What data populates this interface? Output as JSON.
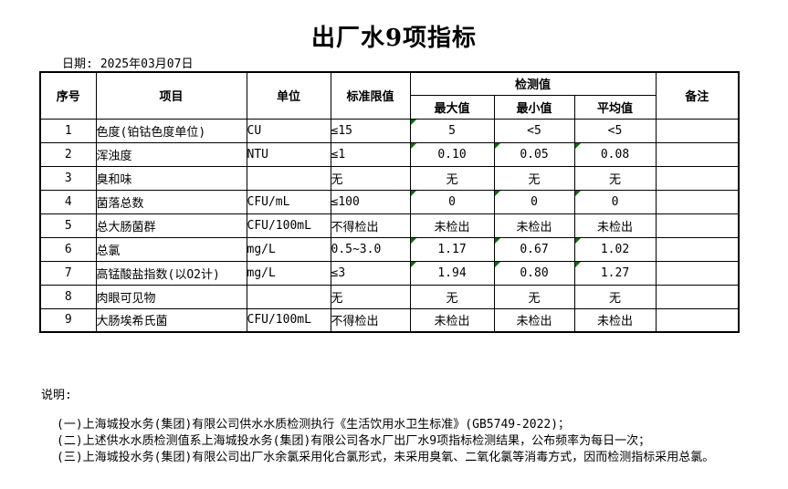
{
  "title": "出厂水9项指标",
  "date": {
    "label": "日期:",
    "value": "2025年03月07日"
  },
  "colors": {
    "flag_triangle": "#007000"
  },
  "table": {
    "headers": {
      "seq": "序号",
      "item": "项目",
      "unit": "单位",
      "limit": "标准限值",
      "detection": "检测值",
      "max": "最大值",
      "min": "最小值",
      "avg": "平均值",
      "remark": "备注"
    },
    "rows": [
      {
        "seq": "1",
        "item": "色度(铂钴色度单位)",
        "unit": "CU",
        "limit": "≤15",
        "max": "5",
        "min": "<5",
        "avg": "<5",
        "remark": "",
        "flags": [
          "max"
        ]
      },
      {
        "seq": "2",
        "item": "浑浊度",
        "unit": "NTU",
        "limit": "≤1",
        "max": "0.10",
        "min": "0.05",
        "avg": "0.08",
        "remark": "",
        "flags": [
          "max",
          "min",
          "avg"
        ]
      },
      {
        "seq": "3",
        "item": "臭和味",
        "unit": "",
        "limit": "无",
        "max": "无",
        "min": "无",
        "avg": "无",
        "remark": "",
        "flags": []
      },
      {
        "seq": "4",
        "item": "菌落总数",
        "unit": "CFU/mL",
        "limit": "≤100",
        "max": "0",
        "min": "0",
        "avg": "0",
        "remark": "",
        "flags": [
          "max",
          "min",
          "avg"
        ]
      },
      {
        "seq": "5",
        "item": "总大肠菌群",
        "unit": "CFU/100mL",
        "limit": "不得检出",
        "max": "未检出",
        "min": "未检出",
        "avg": "未检出",
        "remark": "",
        "flags": []
      },
      {
        "seq": "6",
        "item": "总氯",
        "unit": "mg/L",
        "limit": "0.5~3.0",
        "max": "1.17",
        "min": "0.67",
        "avg": "1.02",
        "remark": "",
        "flags": [
          "max",
          "min",
          "avg"
        ]
      },
      {
        "seq": "7",
        "item": "高锰酸盐指数(以O2计)",
        "unit": "mg/L",
        "limit": "≤3",
        "max": "1.94",
        "min": "0.80",
        "avg": "1.27",
        "remark": "",
        "flags": [
          "max",
          "min",
          "avg"
        ]
      },
      {
        "seq": "8",
        "item": "肉眼可见物",
        "unit": "",
        "limit": "无",
        "max": "无",
        "min": "无",
        "avg": "无",
        "remark": "",
        "flags": []
      },
      {
        "seq": "9",
        "item": "大肠埃希氏菌",
        "unit": "CFU/100mL",
        "limit": "不得检出",
        "max": "未检出",
        "min": "未检出",
        "avg": "未检出",
        "remark": "",
        "flags": []
      }
    ]
  },
  "notes": {
    "heading": "说明:",
    "lines": [
      "(一)上海城投水务(集团)有限公司供水水质检测执行《生活饮用水卫生标准》(GB5749-2022)；",
      "(二)上述供水水质检测值系上海城投水务(集团)有限公司各水厂出厂水9项指标检测结果，公布频率为每日一次；",
      "(三)上海城投水务(集团)有限公司出厂水余氯采用化合氯形式，未采用臭氧、二氧化氯等消毒方式，因而检测指标采用总氯。"
    ]
  }
}
